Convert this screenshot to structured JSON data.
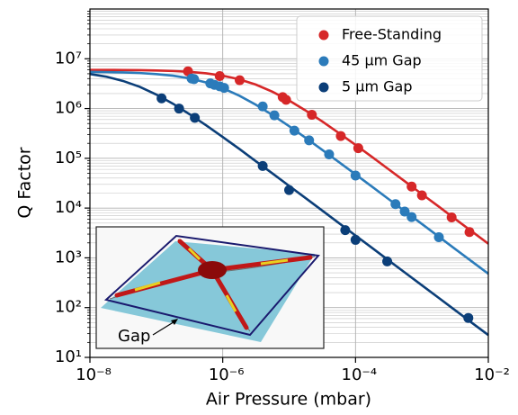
{
  "chart_data": {
    "type": "scatter",
    "xlabel": "Air Pressure (mbar)",
    "ylabel": "Q Factor",
    "xlog": true,
    "ylog": true,
    "xlim": [
      1e-08,
      0.01
    ],
    "ylim": [
      10,
      100000000.0
    ],
    "xticks": [
      {
        "value": 1e-08,
        "label": "10⁻⁸"
      },
      {
        "value": 1e-06,
        "label": "10⁻⁶"
      },
      {
        "value": 0.0001,
        "label": "10⁻⁴"
      },
      {
        "value": 0.01,
        "label": "10⁻²"
      }
    ],
    "yticks": [
      {
        "value": 10,
        "label": "10¹"
      },
      {
        "value": 100,
        "label": "10²"
      },
      {
        "value": 1000,
        "label": "10³"
      },
      {
        "value": 10000,
        "label": "10⁴"
      },
      {
        "value": 100000,
        "label": "10⁵"
      },
      {
        "value": 1000000,
        "label": "10⁶"
      },
      {
        "value": 10000000,
        "label": "10⁷"
      }
    ],
    "grid": true,
    "y_minor_grid": true,
    "legend": "upper right",
    "inset_label": "Gap",
    "series": [
      {
        "name": "Free-Standing",
        "color": "#d62728",
        "x": [
          3e-07,
          9e-07,
          1.8e-06,
          8e-06,
          9e-06,
          2.2e-05,
          6e-05,
          0.00011,
          0.0007,
          0.001,
          0.0028,
          0.0052
        ],
        "values": [
          5600000,
          4500000,
          3700000,
          1700000,
          1500000,
          750000,
          280000,
          160000,
          27000,
          18000,
          6500,
          3300
        ],
        "fit": {
          "x": [
            1e-08,
            1.78e-08,
            3.16e-08,
            5.62e-08,
            1e-07,
            1.78e-07,
            3.16e-07,
            5.62e-07,
            1e-06,
            1.78e-06,
            3.16e-06,
            5.62e-06,
            1e-05,
            1.78e-05,
            3.16e-05,
            5.62e-05,
            0.0001,
            0.000178,
            0.000316,
            0.000562,
            0.001,
            0.00178,
            0.00316,
            0.00562,
            0.01
          ],
          "values": [
            5980000,
            5970000,
            5940000,
            5900000,
            5820000,
            5680000,
            5460000,
            5100000,
            4570000,
            3860000,
            3020000,
            2170000,
            1450000,
            910000,
            550000,
            322000,
            186000,
            106000,
            60000,
            33900,
            19100,
            10800,
            6060,
            3410,
            1920
          ]
        }
      },
      {
        "name": "45 µm Gap",
        "color": "#2b7bba",
        "x": [
          3.4e-07,
          3.7e-07,
          6.5e-07,
          7.5e-07,
          9e-07,
          1.05e-06,
          4e-06,
          6e-06,
          1.2e-05,
          2e-05,
          4e-05,
          0.0001,
          0.0004,
          0.00055,
          0.0007,
          0.0018
        ],
        "values": [
          4000000,
          3900000,
          3200000,
          3000000,
          2800000,
          2600000,
          1100000,
          730000,
          360000,
          230000,
          120000,
          45000,
          12000,
          8500,
          6600,
          2600
        ],
        "fit": {
          "x": [
            1e-08,
            1.78e-08,
            3.16e-08,
            5.62e-08,
            1e-07,
            1.78e-07,
            3.16e-07,
            5.62e-07,
            1e-06,
            1.78e-06,
            3.16e-06,
            5.62e-06,
            1e-05,
            1.78e-05,
            3.16e-05,
            5.62e-05,
            0.0001,
            0.000178,
            0.000316,
            0.000562,
            0.001,
            0.00178,
            0.00316,
            0.00562,
            0.01
          ],
          "values": [
            5440000,
            5390000,
            5310000,
            5170000,
            4930000,
            4570000,
            4040000,
            3340000,
            2560000,
            1810000,
            1190000,
            740000,
            441000,
            257000,
            147000,
            84000,
            47500,
            26800,
            15100,
            8500,
            4790,
            2690,
            1510,
            852,
            479
          ]
        }
      },
      {
        "name": "5 µm Gap",
        "color": "#0b3e78",
        "x": [
          1.2e-07,
          2.2e-07,
          3.8e-07,
          4e-06,
          1e-05,
          7e-05,
          0.0001,
          0.0003,
          0.005
        ],
        "values": [
          1600000,
          1000000,
          650000,
          70000,
          23000,
          3600,
          2300,
          850,
          62
        ],
        "fit": {
          "x": [
            1e-08,
            1.78e-08,
            3.16e-08,
            5.62e-08,
            1e-07,
            1.78e-07,
            3.16e-07,
            5.62e-07,
            1e-06,
            1.78e-06,
            3.16e-06,
            5.62e-06,
            1e-05,
            1.78e-05,
            3.16e-05,
            5.62e-05,
            0.0001,
            0.000178,
            0.000316,
            0.000562,
            0.001,
            0.00178,
            0.00316,
            0.00562,
            0.01
          ],
          "values": [
            4940000,
            4350000,
            3580000,
            2730000,
            1910000,
            1250000,
            770000,
            460000,
            268000,
            154000,
            87000,
            49600,
            27900,
            15800,
            8900,
            4990,
            2810,
            1580,
            887,
            499,
            281,
            158,
            88.7,
            49.9,
            28.1
          ]
        }
      }
    ]
  }
}
